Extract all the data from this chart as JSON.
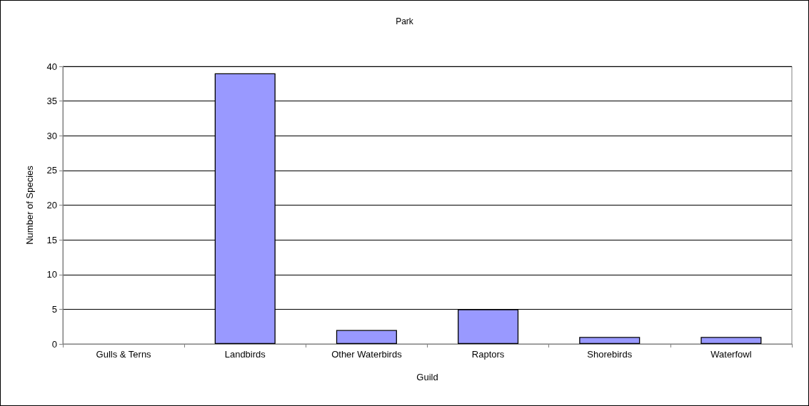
{
  "chart_data": {
    "type": "bar",
    "title": "Park",
    "xlabel": "Guild",
    "ylabel": "Number of Species",
    "categories": [
      "Gulls & Terns",
      "Landbirds",
      "Other Waterbirds",
      "Raptors",
      "Shorebirds",
      "Waterfowl"
    ],
    "values": [
      0,
      39,
      2,
      5,
      1,
      1
    ],
    "color": "#9999ff",
    "ylim": [
      0,
      40
    ],
    "yticks": [
      0,
      5,
      10,
      15,
      20,
      25,
      30,
      35,
      40
    ],
    "grid": "y"
  }
}
